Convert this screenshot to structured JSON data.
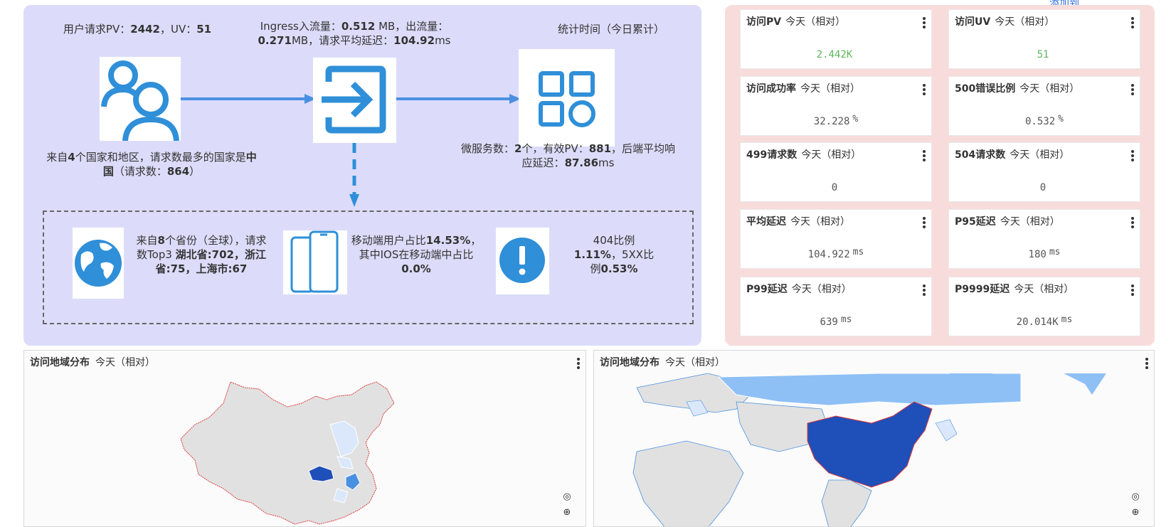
{
  "flow": {
    "pv_label": "用户请求PV：",
    "pv_value": "2442",
    "uv_label": "，UV：",
    "uv_value": "51",
    "ingress_line1_prefix": "Ingress入流量：",
    "ingress_in_value": "0.512",
    "ingress_in_unit": " MB，出流量：",
    "ingress_out_value": "0.271",
    "ingress_out_unit": "MB，请求平均延迟：",
    "ingress_latency_value": "104.92",
    "ingress_latency_unit": "ms",
    "stat_time": "统计时间（今日累计）",
    "country_prefix": "来自",
    "country_count": "4",
    "country_mid": "个国家和地区，请求数最多的国家是",
    "country_top": "中国",
    "country_req_label": "（请求数：",
    "country_req_value": "864",
    "country_req_close": "）",
    "ms_prefix": "微服务数：",
    "ms_count": "2",
    "ms_mid": "个，有效PV：",
    "ms_pv": "881",
    "ms_mid2": "，后端平均响应延迟：",
    "ms_latency": "87.86",
    "ms_unit": "ms",
    "prov_prefix": "来自",
    "prov_count": "8",
    "prov_mid": "个省份（全球），请求数Top3 ",
    "prov_top": "湖北省:702，浙江省:75，上海市:67",
    "mobile_prefix": "移动端用户占比",
    "mobile_pct": "14.53%",
    "mobile_mid": "，其中IOS在移动端中占比",
    "ios_pct": "0.0%",
    "err_label": "404比例",
    "err_404": "1.11%",
    "err_mid": "，5XX比例",
    "err_5xx": "0.53%"
  },
  "metrics": {
    "period": "今天（相对）",
    "cards": [
      {
        "title": "访问PV",
        "value": "2.442K",
        "unit": ""
      },
      {
        "title": "访问UV",
        "value": "51",
        "unit": ""
      },
      {
        "title": "访问成功率",
        "value": "32.228",
        "unit": "%"
      },
      {
        "title": "500错误比例",
        "value": "0.532",
        "unit": "%"
      },
      {
        "title": "499请求数",
        "value": "0",
        "unit": ""
      },
      {
        "title": "504请求数",
        "value": "0",
        "unit": ""
      },
      {
        "title": "平均延迟",
        "value": "104.922",
        "unit": "ms"
      },
      {
        "title": "P95延迟",
        "value": "180",
        "unit": "ms"
      },
      {
        "title": "P99延迟",
        "value": "639",
        "unit": "ms"
      },
      {
        "title": "P9999延迟",
        "value": "20.014K",
        "unit": "ms"
      }
    ]
  },
  "maps": {
    "china_title": "访问地域分布",
    "china_period": "今天（相对）",
    "world_title": "访问地域分布",
    "world_period": "今天（相对）"
  },
  "top_link": "添加到...",
  "colors": {
    "flow_bg": "#dcdcfa",
    "metrics_bg": "#f8dcdc",
    "icon_blue": "#2f8fd8",
    "value_green": "#5cb85c",
    "map_dark": "#1f4fb8",
    "map_mid": "#4a90e2",
    "map_light": "#dbe8fb"
  }
}
